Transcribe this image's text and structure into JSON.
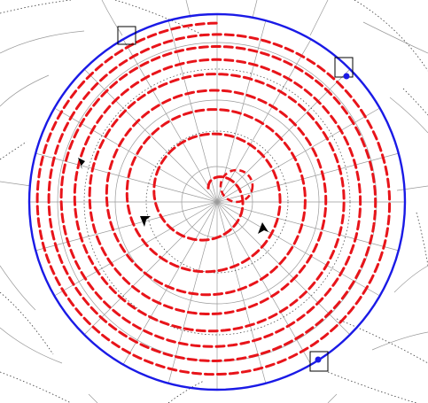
{
  "diagram": {
    "type": "polar-phase-portrait",
    "colors": {
      "background": "#ffffff",
      "trajectory": "#e8141a",
      "boundary_circle": "#1a1ae6",
      "grid_solid": "#9a9a9a",
      "grid_dotted": "#3a3a3a",
      "arrow": "#000000",
      "marker_box": "#000000",
      "marker_dot": "#1a1ae6"
    },
    "trajectory_style": "dashed",
    "grid_style": "polar-with-warped-outer-mesh",
    "boundary_circle_count": 1,
    "arrow_count": 3,
    "boundary_marker_count": 3,
    "icons": [
      "arrowhead-icon",
      "square-marker-icon",
      "dot-marker-icon"
    ]
  }
}
